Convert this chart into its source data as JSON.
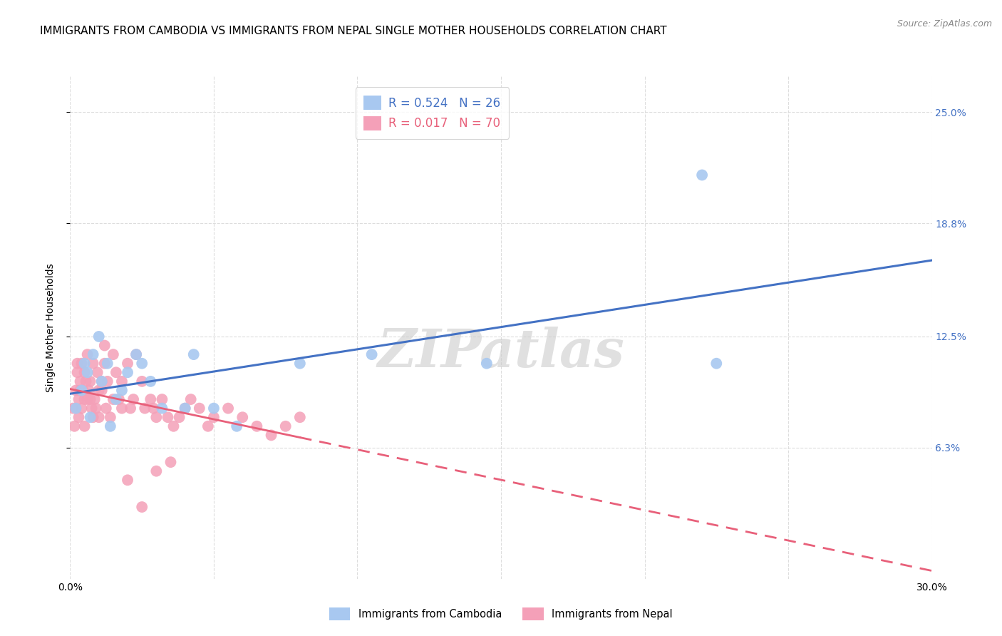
{
  "title": "IMMIGRANTS FROM CAMBODIA VS IMMIGRANTS FROM NEPAL SINGLE MOTHER HOUSEHOLDS CORRELATION CHART",
  "source": "Source: ZipAtlas.com",
  "ylabel": "Single Mother Households",
  "ytick_labels": [
    "6.3%",
    "12.5%",
    "18.8%",
    "25.0%"
  ],
  "ytick_values": [
    6.3,
    12.5,
    18.8,
    25.0
  ],
  "xlim": [
    0.0,
    30.0
  ],
  "ylim": [
    -1.0,
    27.0
  ],
  "watermark": "ZIPatlas",
  "cambodia_color": "#A8C8F0",
  "nepal_color": "#F4A0B8",
  "cambodia_line_color": "#4472C4",
  "nepal_line_color": "#E8607A",
  "legend_R_cambodia": "0.524",
  "legend_N_cambodia": "26",
  "legend_R_nepal": "0.017",
  "legend_N_nepal": "70",
  "cambodia_label": "Immigrants from Cambodia",
  "nepal_label": "Immigrants from Nepal",
  "cambodia_x": [
    0.2,
    0.4,
    0.5,
    0.6,
    0.7,
    0.8,
    1.0,
    1.1,
    1.3,
    1.4,
    1.6,
    1.8,
    2.0,
    2.3,
    2.5,
    2.8,
    3.2,
    4.0,
    4.3,
    5.0,
    5.8,
    8.0,
    10.5,
    14.5,
    22.0,
    22.5
  ],
  "cambodia_y": [
    8.5,
    9.5,
    11.0,
    10.5,
    8.0,
    11.5,
    12.5,
    10.0,
    11.0,
    7.5,
    9.0,
    9.5,
    10.5,
    11.5,
    11.0,
    10.0,
    8.5,
    8.5,
    11.5,
    8.5,
    7.5,
    11.0,
    11.5,
    11.0,
    21.5,
    11.0
  ],
  "nepal_x": [
    0.1,
    0.15,
    0.2,
    0.25,
    0.25,
    0.3,
    0.3,
    0.35,
    0.35,
    0.4,
    0.4,
    0.45,
    0.5,
    0.5,
    0.5,
    0.55,
    0.6,
    0.6,
    0.65,
    0.7,
    0.7,
    0.75,
    0.8,
    0.8,
    0.85,
    0.9,
    0.95,
    1.0,
    1.0,
    1.1,
    1.1,
    1.2,
    1.25,
    1.3,
    1.4,
    1.5,
    1.5,
    1.6,
    1.7,
    1.8,
    1.8,
    2.0,
    2.1,
    2.2,
    2.3,
    2.5,
    2.6,
    2.8,
    2.9,
    3.0,
    3.2,
    3.4,
    3.6,
    3.8,
    4.0,
    4.2,
    4.5,
    5.0,
    5.5,
    6.0,
    6.5,
    7.0,
    7.5,
    8.0,
    2.0,
    2.5,
    3.0,
    1.2,
    3.5,
    4.8
  ],
  "nepal_y": [
    8.5,
    7.5,
    9.5,
    11.0,
    10.5,
    8.0,
    9.0,
    9.5,
    10.0,
    8.5,
    11.0,
    9.5,
    10.5,
    7.5,
    9.0,
    10.0,
    9.0,
    11.5,
    9.5,
    10.0,
    9.0,
    8.5,
    8.0,
    11.0,
    9.0,
    8.5,
    10.5,
    9.5,
    8.0,
    10.0,
    9.5,
    11.0,
    8.5,
    10.0,
    8.0,
    11.5,
    9.0,
    10.5,
    9.0,
    10.0,
    8.5,
    11.0,
    8.5,
    9.0,
    11.5,
    10.0,
    8.5,
    9.0,
    8.5,
    8.0,
    9.0,
    8.0,
    7.5,
    8.0,
    8.5,
    9.0,
    8.5,
    8.0,
    8.5,
    8.0,
    7.5,
    7.0,
    7.5,
    8.0,
    4.5,
    3.0,
    5.0,
    12.0,
    5.5,
    7.5
  ],
  "grid_color": "#DDDDDD",
  "background_color": "#FFFFFF",
  "title_fontsize": 11,
  "axis_label_fontsize": 10,
  "tick_fontsize": 10,
  "source_fontsize": 9
}
